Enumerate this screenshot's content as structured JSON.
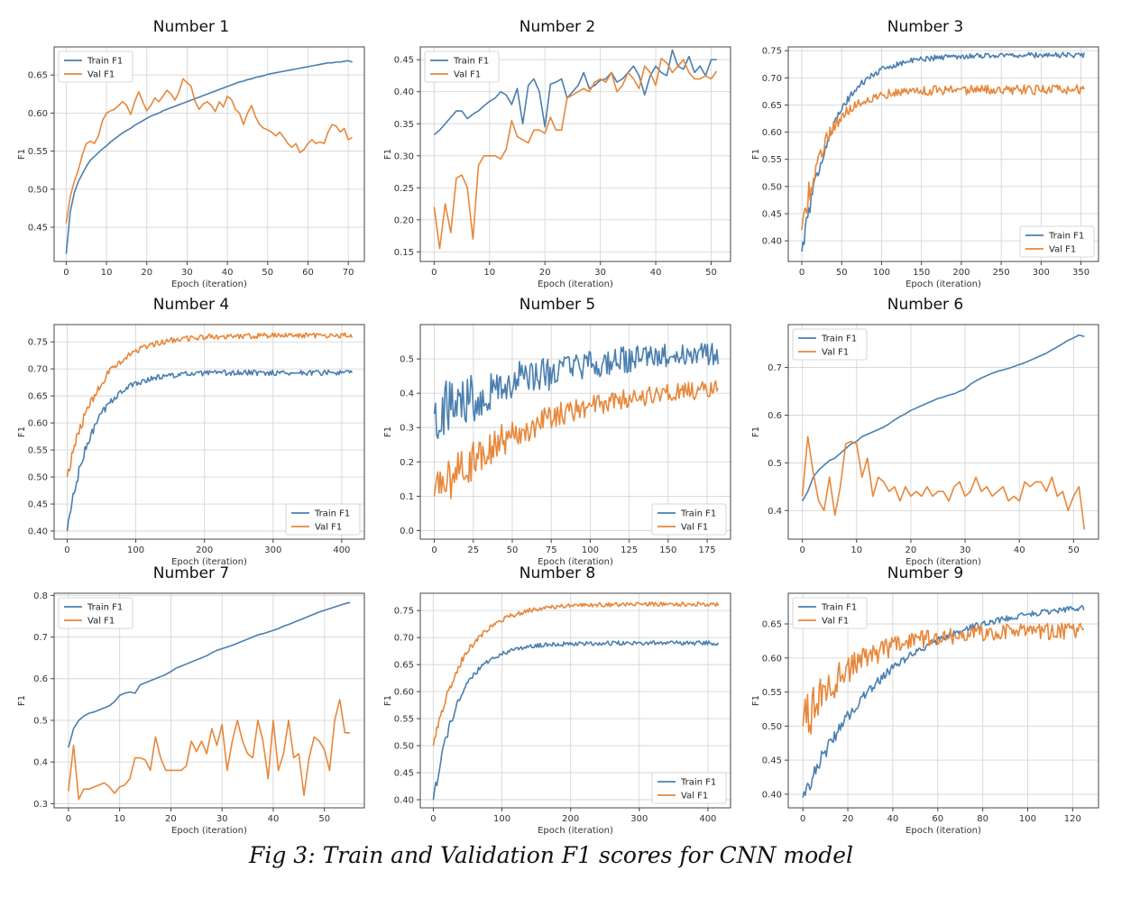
{
  "caption": "Fig 3: Train and Validation F1 scores for CNN model",
  "colors": {
    "train": "#4a7fb0",
    "val": "#e8873a",
    "grid": "#d6d6d6",
    "axis": "#444444"
  },
  "chart_data": [
    {
      "type": "line",
      "title": "Number 1",
      "xlabel": "Epoch (iteration)",
      "ylabel": "F1",
      "xlim": [
        -3,
        74
      ],
      "ylim": [
        0.405,
        0.687
      ],
      "xticks": [
        0,
        10,
        20,
        30,
        40,
        50,
        60,
        70
      ],
      "yticks": [
        0.45,
        0.5,
        0.55,
        0.6,
        0.65
      ],
      "ytick_labels": [
        "0.45",
        "0.50",
        "0.55",
        "0.60",
        "0.65"
      ],
      "grid": true,
      "legend": "top-left",
      "series": [
        {
          "name": "Train F1",
          "x_end": 71,
          "values": [
            0.415,
            0.47,
            0.495,
            0.51,
            0.52,
            0.53,
            0.538,
            0.543,
            0.548,
            0.553,
            0.557,
            0.562,
            0.566,
            0.57,
            0.574,
            0.577,
            0.58,
            0.584,
            0.587,
            0.59,
            0.593,
            0.596,
            0.598,
            0.6,
            0.603,
            0.605,
            0.607,
            0.609,
            0.611,
            0.613,
            0.615,
            0.617,
            0.619,
            0.621,
            0.623,
            0.625,
            0.627,
            0.629,
            0.631,
            0.633,
            0.635,
            0.637,
            0.639,
            0.641,
            0.642,
            0.644,
            0.645,
            0.647,
            0.648,
            0.649,
            0.651,
            0.652,
            0.653,
            0.654,
            0.655,
            0.656,
            0.657,
            0.658,
            0.659,
            0.66,
            0.661,
            0.662,
            0.663,
            0.664,
            0.665,
            0.666,
            0.666,
            0.667,
            0.667,
            0.668,
            0.669,
            0.667
          ]
        },
        {
          "name": "Val F1",
          "x_end": 71,
          "values": [
            0.455,
            0.49,
            0.51,
            0.525,
            0.545,
            0.56,
            0.563,
            0.56,
            0.57,
            0.59,
            0.6,
            0.603,
            0.605,
            0.61,
            0.615,
            0.61,
            0.598,
            0.615,
            0.628,
            0.615,
            0.603,
            0.61,
            0.62,
            0.615,
            0.622,
            0.63,
            0.625,
            0.617,
            0.628,
            0.645,
            0.64,
            0.635,
            0.615,
            0.605,
            0.612,
            0.615,
            0.61,
            0.602,
            0.615,
            0.608,
            0.622,
            0.618,
            0.605,
            0.6,
            0.585,
            0.6,
            0.61,
            0.595,
            0.585,
            0.58,
            0.578,
            0.575,
            0.57,
            0.575,
            0.568,
            0.56,
            0.555,
            0.56,
            0.548,
            0.552,
            0.56,
            0.565,
            0.56,
            0.562,
            0.56,
            0.575,
            0.585,
            0.583,
            0.575,
            0.58,
            0.565,
            0.568
          ]
        }
      ]
    },
    {
      "type": "line",
      "title": "Number 2",
      "xlabel": "Epoch (iteration)",
      "ylabel": "F1",
      "xlim": [
        -2.5,
        53.5
      ],
      "ylim": [
        0.135,
        0.47
      ],
      "xticks": [
        0,
        10,
        20,
        30,
        40,
        50
      ],
      "yticks": [
        0.15,
        0.2,
        0.25,
        0.3,
        0.35,
        0.4,
        0.45
      ],
      "ytick_labels": [
        "0.15",
        "0.20",
        "0.25",
        "0.30",
        "0.35",
        "0.40",
        "0.45"
      ],
      "grid": true,
      "legend": "top-left",
      "series": [
        {
          "name": "Train F1",
          "x_end": 51,
          "values": [
            0.333,
            0.34,
            0.35,
            0.36,
            0.37,
            0.37,
            0.358,
            0.365,
            0.37,
            0.378,
            0.385,
            0.39,
            0.4,
            0.395,
            0.38,
            0.405,
            0.35,
            0.41,
            0.42,
            0.4,
            0.345,
            0.412,
            0.415,
            0.42,
            0.39,
            0.4,
            0.41,
            0.43,
            0.405,
            0.41,
            0.418,
            0.42,
            0.43,
            0.415,
            0.42,
            0.43,
            0.44,
            0.425,
            0.395,
            0.425,
            0.44,
            0.43,
            0.425,
            0.465,
            0.44,
            0.435,
            0.455,
            0.43,
            0.44,
            0.425,
            0.45,
            0.45
          ]
        },
        {
          "name": "Val F1",
          "x_end": 51,
          "values": [
            0.22,
            0.155,
            0.225,
            0.18,
            0.265,
            0.27,
            0.25,
            0.17,
            0.285,
            0.3,
            0.3,
            0.3,
            0.295,
            0.31,
            0.355,
            0.33,
            0.325,
            0.32,
            0.34,
            0.34,
            0.335,
            0.36,
            0.34,
            0.34,
            0.39,
            0.395,
            0.4,
            0.405,
            0.4,
            0.415,
            0.42,
            0.415,
            0.43,
            0.4,
            0.41,
            0.43,
            0.42,
            0.405,
            0.44,
            0.43,
            0.41,
            0.452,
            0.445,
            0.43,
            0.44,
            0.45,
            0.43,
            0.42,
            0.42,
            0.425,
            0.42,
            0.432
          ]
        }
      ]
    },
    {
      "type": "line",
      "title": "Number 3",
      "xlabel": "Epoch (iteration)",
      "ylabel": "F1",
      "xlim": [
        -17,
        372
      ],
      "ylim": [
        0.362,
        0.757
      ],
      "xticks": [
        0,
        50,
        100,
        150,
        200,
        250,
        300,
        350
      ],
      "yticks": [
        0.4,
        0.45,
        0.5,
        0.55,
        0.6,
        0.65,
        0.7,
        0.75
      ],
      "ytick_labels": [
        "0.40",
        "0.45",
        "0.50",
        "0.55",
        "0.60",
        "0.65",
        "0.70",
        "0.75"
      ],
      "grid": true,
      "legend": "bottom-right",
      "series": [
        {
          "name": "Train F1",
          "x_end": 354,
          "curve": {
            "start": 0.38,
            "end": 0.742,
            "tau": 0.11,
            "noise": 0.005
          }
        },
        {
          "name": "Val F1",
          "x_end": 354,
          "curve": {
            "start": 0.42,
            "end": 0.678,
            "tau": 0.085,
            "noise": 0.009
          }
        }
      ]
    },
    {
      "type": "line",
      "title": "Number 4",
      "xlabel": "Epoch (iteration)",
      "ylabel": "F1",
      "xlim": [
        -19,
        433
      ],
      "ylim": [
        0.385,
        0.782
      ],
      "xticks": [
        0,
        100,
        200,
        300,
        400
      ],
      "yticks": [
        0.4,
        0.45,
        0.5,
        0.55,
        0.6,
        0.65,
        0.7,
        0.75
      ],
      "ytick_labels": [
        "0.40",
        "0.45",
        "0.50",
        "0.55",
        "0.60",
        "0.65",
        "0.70",
        "0.75"
      ],
      "grid": true,
      "legend": "bottom-right",
      "series": [
        {
          "name": "Train F1",
          "x_end": 415,
          "curve": {
            "start": 0.4,
            "end": 0.693,
            "tau": 0.09,
            "noise": 0.005
          }
        },
        {
          "name": "Val F1",
          "x_end": 415,
          "curve": {
            "start": 0.5,
            "end": 0.762,
            "tau": 0.11,
            "noise": 0.005
          }
        }
      ]
    },
    {
      "type": "line",
      "title": "Number 5",
      "xlabel": "Epoch (iteration)",
      "ylabel": "F1",
      "xlim": [
        -9,
        190
      ],
      "ylim": [
        -0.025,
        0.6
      ],
      "xticks": [
        0,
        25,
        50,
        75,
        100,
        125,
        150,
        175
      ],
      "yticks": [
        0.0,
        0.1,
        0.2,
        0.3,
        0.4,
        0.5
      ],
      "ytick_labels": [
        "0.0",
        "0.1",
        "0.2",
        "0.3",
        "0.4",
        "0.5"
      ],
      "grid": true,
      "legend": "bottom-right",
      "series": [
        {
          "name": "Train F1",
          "x_end": 182,
          "curve": {
            "start": 0.34,
            "end": 0.54,
            "tau": 0.45,
            "noise": 0.03
          }
        },
        {
          "name": "Val F1",
          "x_end": 182,
          "curve": {
            "start": 0.1,
            "end": 0.43,
            "tau": 0.35,
            "noise": 0.025
          }
        }
      ]
    },
    {
      "type": "line",
      "title": "Number 6",
      "xlabel": "Epoch (iteration)",
      "ylabel": "F1",
      "xlim": [
        -2.6,
        54.6
      ],
      "ylim": [
        0.34,
        0.79
      ],
      "xticks": [
        0,
        10,
        20,
        30,
        40,
        50
      ],
      "yticks": [
        0.4,
        0.5,
        0.6,
        0.7
      ],
      "ytick_labels": [
        "0.4",
        "0.5",
        "0.6",
        "0.7"
      ],
      "grid": true,
      "legend": "top-left",
      "series": [
        {
          "name": "Train F1",
          "x_end": 52,
          "values": [
            0.42,
            0.44,
            0.47,
            0.485,
            0.495,
            0.505,
            0.51,
            0.52,
            0.53,
            0.54,
            0.545,
            0.555,
            0.56,
            0.565,
            0.57,
            0.575,
            0.582,
            0.59,
            0.597,
            0.603,
            0.61,
            0.615,
            0.62,
            0.625,
            0.63,
            0.635,
            0.638,
            0.642,
            0.645,
            0.65,
            0.655,
            0.665,
            0.672,
            0.678,
            0.683,
            0.688,
            0.692,
            0.695,
            0.698,
            0.702,
            0.706,
            0.71,
            0.715,
            0.72,
            0.725,
            0.73,
            0.737,
            0.743,
            0.75,
            0.757,
            0.762,
            0.768,
            0.765
          ]
        },
        {
          "name": "Val F1",
          "x_end": 52,
          "values": [
            0.43,
            0.555,
            0.48,
            0.42,
            0.4,
            0.47,
            0.39,
            0.45,
            0.54,
            0.545,
            0.54,
            0.47,
            0.51,
            0.43,
            0.47,
            0.46,
            0.44,
            0.45,
            0.42,
            0.45,
            0.43,
            0.44,
            0.43,
            0.45,
            0.43,
            0.44,
            0.44,
            0.42,
            0.45,
            0.46,
            0.43,
            0.44,
            0.47,
            0.44,
            0.45,
            0.43,
            0.44,
            0.45,
            0.42,
            0.43,
            0.42,
            0.46,
            0.45,
            0.46,
            0.46,
            0.44,
            0.47,
            0.43,
            0.44,
            0.4,
            0.43,
            0.45,
            0.36
          ]
        }
      ]
    },
    {
      "type": "line",
      "title": "Number 7",
      "xlabel": "Epoch (iteration)",
      "ylabel": "F1",
      "xlim": [
        -2.8,
        57.8
      ],
      "ylim": [
        0.29,
        0.805
      ],
      "xticks": [
        0,
        10,
        20,
        30,
        40,
        50
      ],
      "yticks": [
        0.3,
        0.4,
        0.5,
        0.6,
        0.7,
        0.8
      ],
      "ytick_labels": [
        "0.3",
        "0.4",
        "0.5",
        "0.6",
        "0.7",
        "0.8"
      ],
      "grid": true,
      "legend": "top-left",
      "series": [
        {
          "name": "Train F1",
          "x_end": 55,
          "values": [
            0.435,
            0.48,
            0.5,
            0.51,
            0.517,
            0.52,
            0.525,
            0.53,
            0.535,
            0.545,
            0.56,
            0.565,
            0.568,
            0.565,
            0.585,
            0.59,
            0.595,
            0.6,
            0.605,
            0.61,
            0.617,
            0.625,
            0.63,
            0.635,
            0.64,
            0.645,
            0.65,
            0.655,
            0.662,
            0.668,
            0.672,
            0.676,
            0.68,
            0.685,
            0.69,
            0.695,
            0.7,
            0.705,
            0.708,
            0.712,
            0.716,
            0.72,
            0.726,
            0.73,
            0.735,
            0.74,
            0.745,
            0.75,
            0.755,
            0.76,
            0.764,
            0.768,
            0.772,
            0.776,
            0.78,
            0.783
          ]
        },
        {
          "name": "Val F1",
          "x_end": 55,
          "values": [
            0.33,
            0.44,
            0.31,
            0.335,
            0.335,
            0.34,
            0.345,
            0.35,
            0.34,
            0.325,
            0.34,
            0.345,
            0.36,
            0.41,
            0.41,
            0.405,
            0.38,
            0.46,
            0.41,
            0.38,
            0.38,
            0.38,
            0.38,
            0.39,
            0.45,
            0.425,
            0.45,
            0.42,
            0.48,
            0.44,
            0.49,
            0.38,
            0.45,
            0.5,
            0.45,
            0.42,
            0.41,
            0.5,
            0.45,
            0.36,
            0.5,
            0.38,
            0.42,
            0.5,
            0.41,
            0.42,
            0.32,
            0.41,
            0.46,
            0.45,
            0.43,
            0.38,
            0.5,
            0.55,
            0.47,
            0.47
          ]
        }
      ]
    },
    {
      "type": "line",
      "title": "Number 8",
      "xlabel": "Epoch (iteration)",
      "ylabel": "F1",
      "xlim": [
        -19,
        433
      ],
      "ylim": [
        0.385,
        0.782
      ],
      "xticks": [
        0,
        100,
        200,
        300,
        400
      ],
      "yticks": [
        0.4,
        0.45,
        0.5,
        0.55,
        0.6,
        0.65,
        0.7,
        0.75
      ],
      "ytick_labels": [
        "0.40",
        "0.45",
        "0.50",
        "0.55",
        "0.60",
        "0.65",
        "0.70",
        "0.75"
      ],
      "grid": true,
      "legend": "bottom-right",
      "series": [
        {
          "name": "Train F1",
          "x_end": 415,
          "curve": {
            "start": 0.4,
            "end": 0.69,
            "tau": 0.09,
            "noise": 0.004
          }
        },
        {
          "name": "Val F1",
          "x_end": 415,
          "curve": {
            "start": 0.5,
            "end": 0.762,
            "tau": 0.11,
            "noise": 0.004
          }
        }
      ]
    },
    {
      "type": "line",
      "title": "Number 9",
      "xlabel": "Epoch (iteration)",
      "ylabel": "F1",
      "xlim": [
        -6.5,
        131.5
      ],
      "ylim": [
        0.38,
        0.695
      ],
      "xticks": [
        0,
        20,
        40,
        60,
        80,
        100,
        120
      ],
      "yticks": [
        0.4,
        0.45,
        0.5,
        0.55,
        0.6,
        0.65
      ],
      "ytick_labels": [
        "0.40",
        "0.45",
        "0.50",
        "0.55",
        "0.60",
        "0.65"
      ],
      "grid": true,
      "legend": "top-left",
      "series": [
        {
          "name": "Train F1",
          "x_end": 125,
          "curve": {
            "start": 0.395,
            "end": 0.684,
            "tau": 0.3,
            "noise": 0.004
          }
        },
        {
          "name": "Val F1",
          "x_end": 125,
          "curve": {
            "start": 0.5,
            "end": 0.64,
            "tau": 0.18,
            "noise": 0.012
          }
        }
      ]
    }
  ]
}
